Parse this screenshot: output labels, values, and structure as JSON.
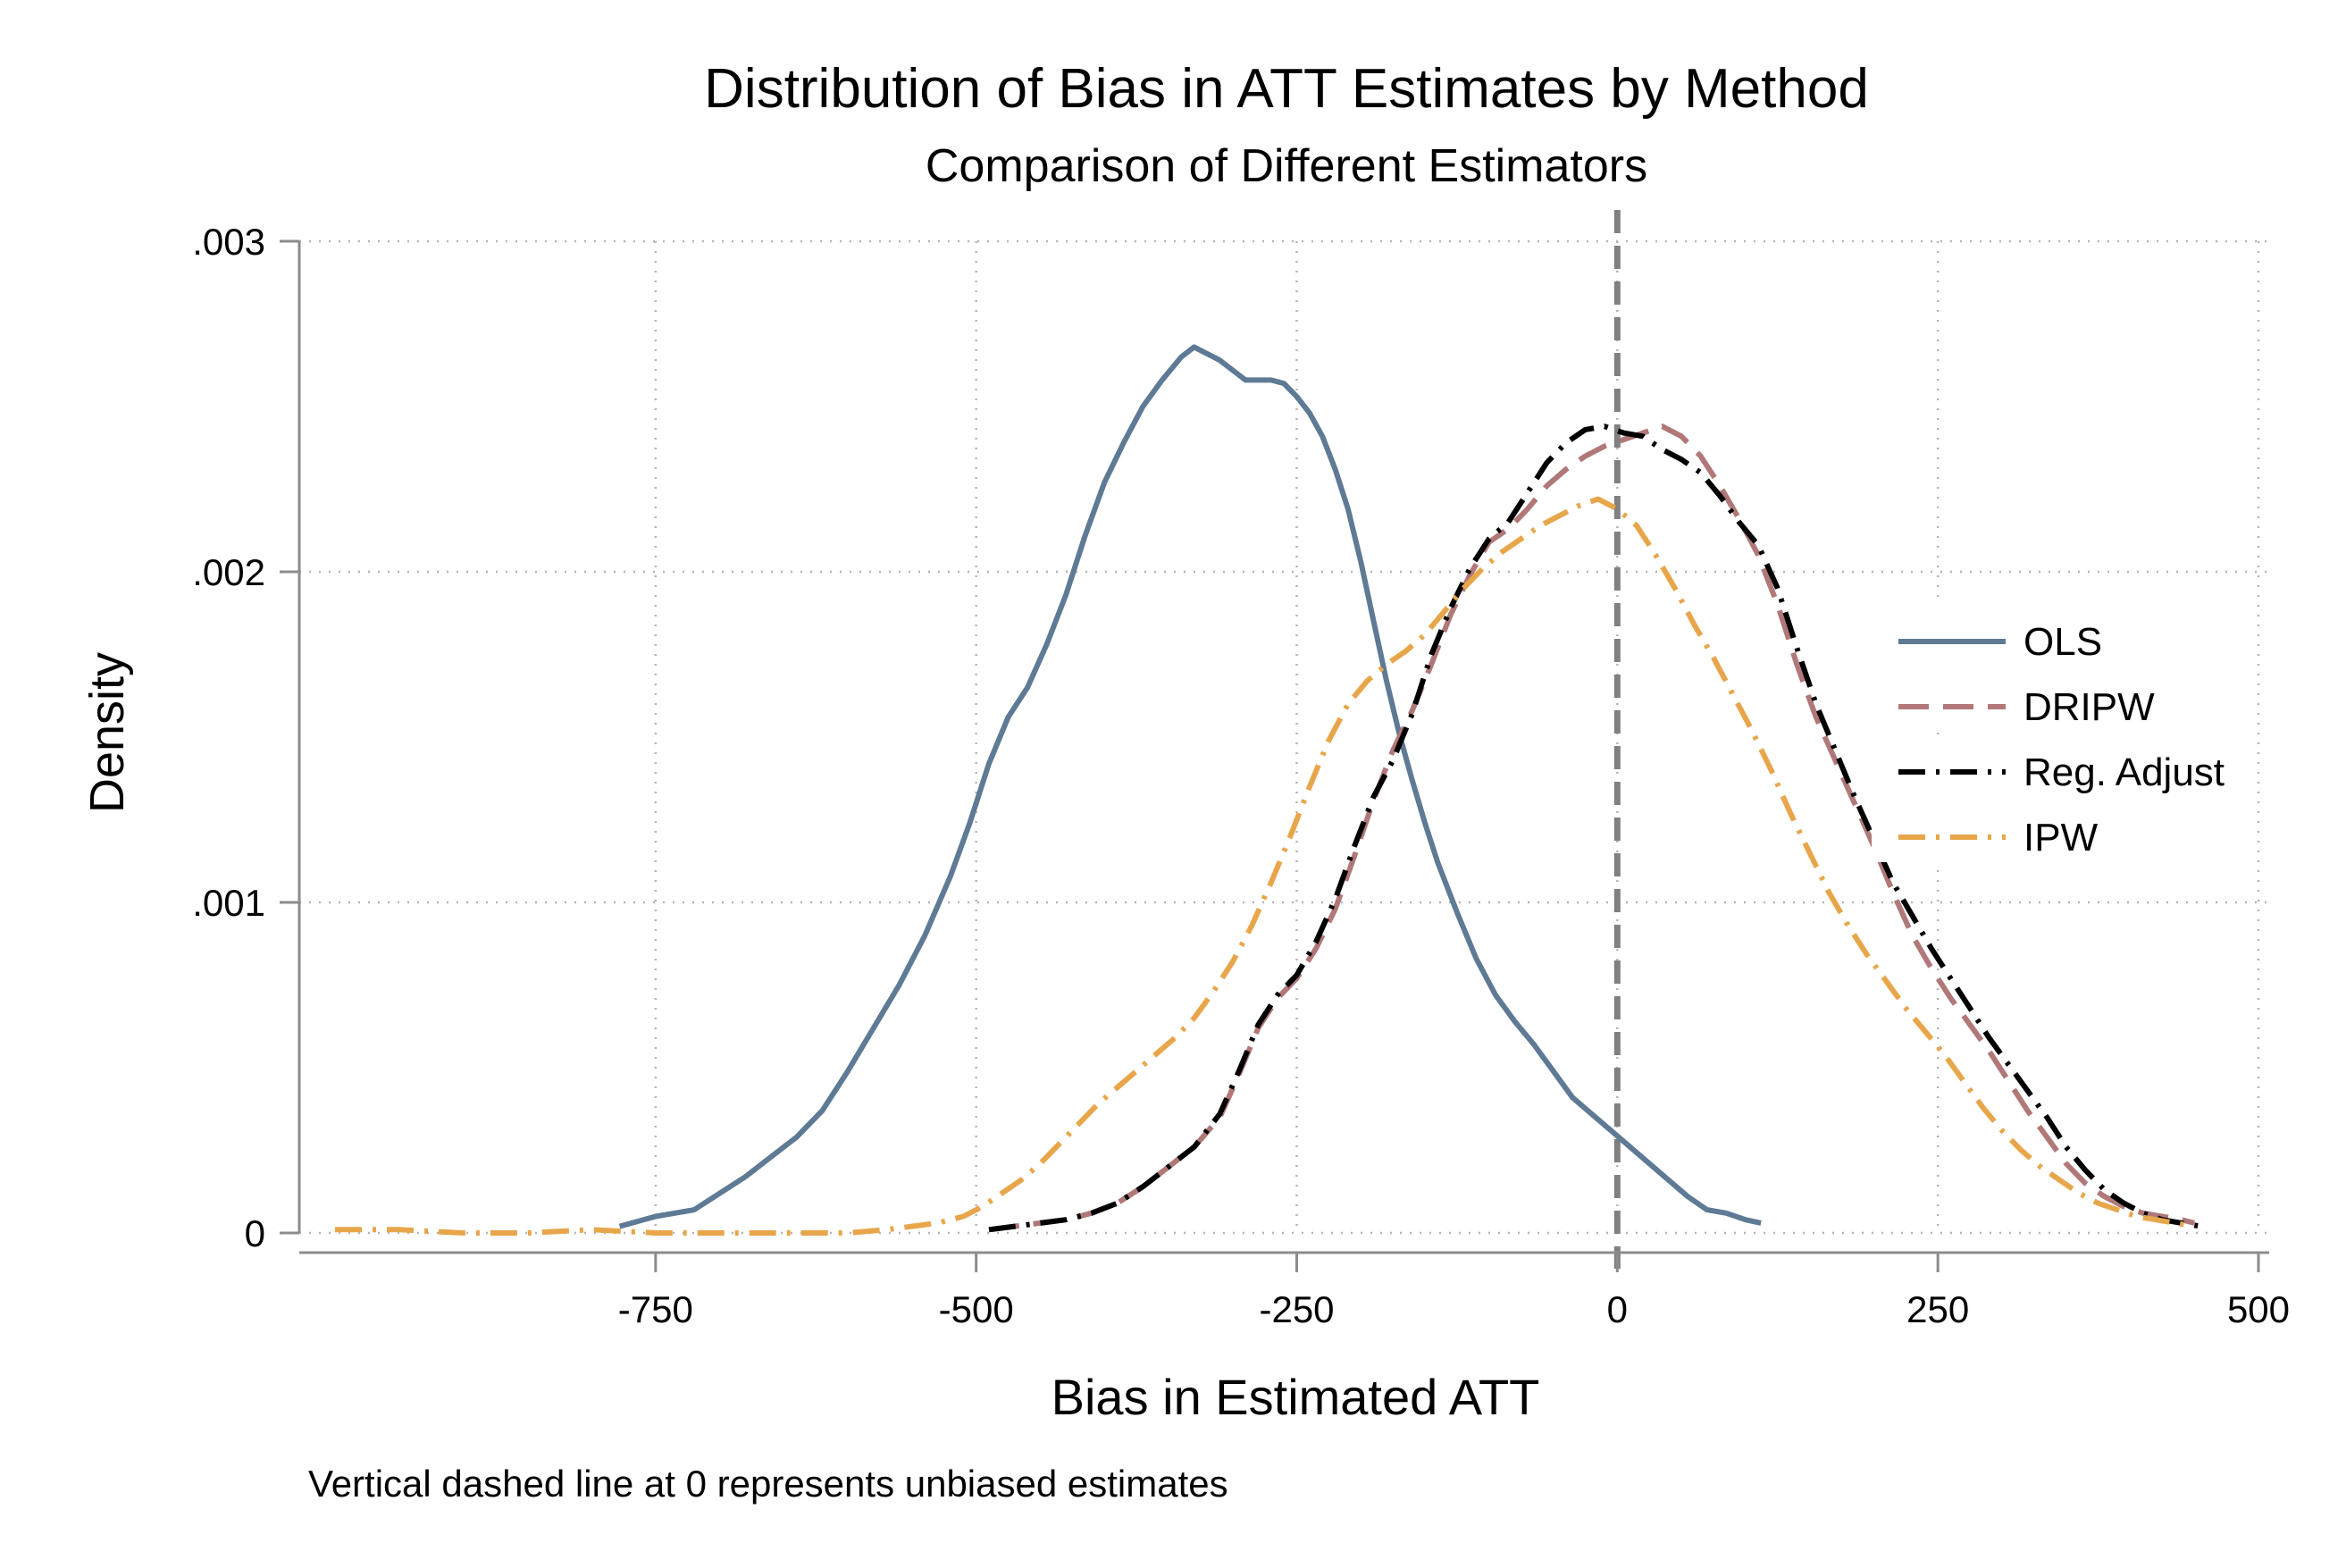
{
  "chart_data": {
    "type": "line",
    "title": "Distribution of Bias in ATT Estimates by Method",
    "subtitle": "Comparison of Different Estimators",
    "xlabel": "Bias in Estimated ATT",
    "ylabel": "Density",
    "note": "Vertical dashed line at 0 represents unbiased estimates",
    "xlim": [
      -1000,
      500
    ],
    "ylim": [
      0,
      0.003
    ],
    "xticks": [
      -750,
      -500,
      -250,
      0,
      250,
      500
    ],
    "xtick_labels": [
      "-750",
      "-500",
      "-250",
      "0",
      "250",
      "500"
    ],
    "yticks": [
      0,
      0.001,
      0.002,
      0.003
    ],
    "ytick_labels": [
      "0",
      ".001",
      ".002",
      ".003"
    ],
    "grid": true,
    "reference_line": {
      "x": 0,
      "color": "#808080",
      "style": "dashed"
    },
    "legend_position": "right",
    "series": [
      {
        "name": "OLS",
        "color": "#5e7a95",
        "dash": "solid",
        "points": [
          [
            -778,
            2e-05
          ],
          [
            -750,
            5e-05
          ],
          [
            -720,
            7e-05
          ],
          [
            -700,
            0.00012
          ],
          [
            -680,
            0.00017
          ],
          [
            -660,
            0.00023
          ],
          [
            -640,
            0.00029
          ],
          [
            -620,
            0.00037
          ],
          [
            -600,
            0.00049
          ],
          [
            -580,
            0.00062
          ],
          [
            -560,
            0.00075
          ],
          [
            -540,
            0.0009
          ],
          [
            -520,
            0.00108
          ],
          [
            -505,
            0.00124
          ],
          [
            -490,
            0.00142
          ],
          [
            -475,
            0.00156
          ],
          [
            -460,
            0.00165
          ],
          [
            -445,
            0.00178
          ],
          [
            -430,
            0.00193
          ],
          [
            -415,
            0.00211
          ],
          [
            -400,
            0.00227
          ],
          [
            -385,
            0.00239
          ],
          [
            -370,
            0.0025
          ],
          [
            -355,
            0.00258
          ],
          [
            -340,
            0.00265
          ],
          [
            -330,
            0.00268
          ],
          [
            -320,
            0.00266
          ],
          [
            -310,
            0.00264
          ],
          [
            -300,
            0.00261
          ],
          [
            -290,
            0.00258
          ],
          [
            -280,
            0.00258
          ],
          [
            -270,
            0.00258
          ],
          [
            -260,
            0.00257
          ],
          [
            -250,
            0.00253
          ],
          [
            -240,
            0.00248
          ],
          [
            -230,
            0.00241
          ],
          [
            -220,
            0.00231
          ],
          [
            -210,
            0.00219
          ],
          [
            -200,
            0.00203
          ],
          [
            -190,
            0.00185
          ],
          [
            -180,
            0.00167
          ],
          [
            -170,
            0.00151
          ],
          [
            -160,
            0.00137
          ],
          [
            -150,
            0.00124
          ],
          [
            -140,
            0.00112
          ],
          [
            -125,
            0.00097
          ],
          [
            -110,
            0.00083
          ],
          [
            -95,
            0.00072
          ],
          [
            -80,
            0.00064
          ],
          [
            -65,
            0.00057
          ],
          [
            -50,
            0.00049
          ],
          [
            -35,
            0.00041
          ],
          [
            -20,
            0.00036
          ],
          [
            -5,
            0.00031
          ],
          [
            10,
            0.00026
          ],
          [
            25,
            0.00021
          ],
          [
            40,
            0.00016
          ],
          [
            55,
            0.00011
          ],
          [
            70,
            7e-05
          ],
          [
            85,
            6e-05
          ],
          [
            100,
            4e-05
          ],
          [
            112,
            3e-05
          ]
        ]
      },
      {
        "name": "DRIPW",
        "color": "#b07878",
        "dash": "dashed",
        "points": [
          [
            -490,
            1e-05
          ],
          [
            -470,
            2e-05
          ],
          [
            -450,
            3e-05
          ],
          [
            -430,
            4e-05
          ],
          [
            -410,
            6e-05
          ],
          [
            -390,
            9e-05
          ],
          [
            -370,
            0.00014
          ],
          [
            -350,
            0.0002
          ],
          [
            -330,
            0.00026
          ],
          [
            -310,
            0.00035
          ],
          [
            -295,
            0.00048
          ],
          [
            -280,
            0.00062
          ],
          [
            -265,
            0.00071
          ],
          [
            -250,
            0.00077
          ],
          [
            -235,
            0.00086
          ],
          [
            -220,
            0.00098
          ],
          [
            -205,
            0.00114
          ],
          [
            -190,
            0.00131
          ],
          [
            -175,
            0.00146
          ],
          [
            -160,
            0.00158
          ],
          [
            -145,
            0.00172
          ],
          [
            -130,
            0.00187
          ],
          [
            -115,
            0.00199
          ],
          [
            -100,
            0.00209
          ],
          [
            -85,
            0.00213
          ],
          [
            -70,
            0.00219
          ],
          [
            -55,
            0.00226
          ],
          [
            -40,
            0.00231
          ],
          [
            -25,
            0.00235
          ],
          [
            -10,
            0.00238
          ],
          [
            5,
            0.0024
          ],
          [
            20,
            0.00242
          ],
          [
            35,
            0.00244
          ],
          [
            50,
            0.00241
          ],
          [
            65,
            0.00235
          ],
          [
            80,
            0.00226
          ],
          [
            95,
            0.00216
          ],
          [
            110,
            0.00205
          ],
          [
            125,
            0.0019
          ],
          [
            140,
            0.00172
          ],
          [
            155,
            0.00156
          ],
          [
            170,
            0.00143
          ],
          [
            185,
            0.0013
          ],
          [
            200,
            0.00117
          ],
          [
            215,
            0.00103
          ],
          [
            230,
            0.0009
          ],
          [
            245,
            0.0008
          ],
          [
            260,
            0.00071
          ],
          [
            275,
            0.00063
          ],
          [
            290,
            0.00055
          ],
          [
            305,
            0.00046
          ],
          [
            320,
            0.00037
          ],
          [
            335,
            0.00029
          ],
          [
            350,
            0.00021
          ],
          [
            365,
            0.00015
          ],
          [
            380,
            0.00011
          ],
          [
            395,
            8e-05
          ],
          [
            410,
            6e-05
          ],
          [
            425,
            5e-05
          ],
          [
            440,
            4e-05
          ],
          [
            450,
            3e-05
          ]
        ]
      },
      {
        "name": "Reg. Adjust",
        "color": "#000000",
        "dash": "dashdot",
        "points": [
          [
            -490,
            1e-05
          ],
          [
            -470,
            2e-05
          ],
          [
            -450,
            3e-05
          ],
          [
            -430,
            4e-05
          ],
          [
            -410,
            6e-05
          ],
          [
            -390,
            9e-05
          ],
          [
            -370,
            0.00014
          ],
          [
            -350,
            0.0002
          ],
          [
            -330,
            0.00026
          ],
          [
            -310,
            0.00036
          ],
          [
            -295,
            0.00049
          ],
          [
            -280,
            0.00063
          ],
          [
            -265,
            0.00072
          ],
          [
            -250,
            0.00078
          ],
          [
            -235,
            0.00088
          ],
          [
            -220,
            0.00101
          ],
          [
            -205,
            0.00117
          ],
          [
            -190,
            0.00132
          ],
          [
            -175,
            0.00143
          ],
          [
            -160,
            0.00157
          ],
          [
            -145,
            0.00175
          ],
          [
            -130,
            0.00189
          ],
          [
            -115,
            0.00201
          ],
          [
            -100,
            0.0021
          ],
          [
            -85,
            0.00215
          ],
          [
            -70,
            0.00224
          ],
          [
            -55,
            0.00233
          ],
          [
            -40,
            0.00239
          ],
          [
            -25,
            0.00243
          ],
          [
            -10,
            0.00244
          ],
          [
            5,
            0.00242
          ],
          [
            20,
            0.00241
          ],
          [
            35,
            0.00237
          ],
          [
            50,
            0.00234
          ],
          [
            65,
            0.0023
          ],
          [
            80,
            0.00223
          ],
          [
            95,
            0.00215
          ],
          [
            110,
            0.00208
          ],
          [
            125,
            0.00195
          ],
          [
            140,
            0.00177
          ],
          [
            155,
            0.0016
          ],
          [
            170,
            0.00146
          ],
          [
            185,
            0.00132
          ],
          [
            200,
            0.00119
          ],
          [
            215,
            0.00106
          ],
          [
            230,
            0.00096
          ],
          [
            245,
            0.00086
          ],
          [
            260,
            0.00077
          ],
          [
            275,
            0.00068
          ],
          [
            290,
            0.00059
          ],
          [
            305,
            0.00051
          ],
          [
            320,
            0.00043
          ],
          [
            335,
            0.00035
          ],
          [
            350,
            0.00026
          ],
          [
            365,
            0.00019
          ],
          [
            380,
            0.00013
          ],
          [
            395,
            9e-05
          ],
          [
            410,
            6e-05
          ],
          [
            425,
            4e-05
          ],
          [
            440,
            3e-05
          ],
          [
            455,
            2e-05
          ]
        ]
      },
      {
        "name": "IPW",
        "color": "#e8a64b",
        "dash": "dashdot",
        "points": [
          [
            -1000,
            1e-05
          ],
          [
            -950,
            1e-05
          ],
          [
            -900,
            0.0
          ],
          [
            -850,
            0.0
          ],
          [
            -800,
            1e-05
          ],
          [
            -750,
            0.0
          ],
          [
            -700,
            0.0
          ],
          [
            -650,
            0.0
          ],
          [
            -600,
            0.0
          ],
          [
            -570,
            1e-05
          ],
          [
            -550,
            2e-05
          ],
          [
            -530,
            3e-05
          ],
          [
            -510,
            5e-05
          ],
          [
            -495,
            8e-05
          ],
          [
            -480,
            0.00012
          ],
          [
            -465,
            0.00016
          ],
          [
            -450,
            0.00021
          ],
          [
            -435,
            0.00027
          ],
          [
            -420,
            0.00033
          ],
          [
            -405,
            0.00039
          ],
          [
            -390,
            0.00044
          ],
          [
            -375,
            0.00049
          ],
          [
            -360,
            0.00054
          ],
          [
            -345,
            0.00059
          ],
          [
            -330,
            0.00065
          ],
          [
            -315,
            0.00073
          ],
          [
            -300,
            0.00082
          ],
          [
            -285,
            0.00093
          ],
          [
            -270,
            0.00106
          ],
          [
            -255,
            0.0012
          ],
          [
            -240,
            0.00135
          ],
          [
            -225,
            0.00149
          ],
          [
            -210,
            0.0016
          ],
          [
            -195,
            0.00167
          ],
          [
            -180,
            0.00172
          ],
          [
            -165,
            0.00176
          ],
          [
            -150,
            0.00181
          ],
          [
            -135,
            0.00188
          ],
          [
            -120,
            0.00195
          ],
          [
            -105,
            0.00201
          ],
          [
            -90,
            0.00206
          ],
          [
            -75,
            0.0021
          ],
          [
            -60,
            0.00214
          ],
          [
            -45,
            0.00217
          ],
          [
            -30,
            0.0022
          ],
          [
            -15,
            0.00222
          ],
          [
            0,
            0.00219
          ],
          [
            15,
            0.00214
          ],
          [
            30,
            0.00205
          ],
          [
            45,
            0.00195
          ],
          [
            60,
            0.00184
          ],
          [
            75,
            0.00174
          ],
          [
            90,
            0.00163
          ],
          [
            105,
            0.00152
          ],
          [
            120,
            0.0014
          ],
          [
            135,
            0.00127
          ],
          [
            150,
            0.00115
          ],
          [
            165,
            0.00103
          ],
          [
            180,
            0.00093
          ],
          [
            195,
            0.00084
          ],
          [
            210,
            0.00076
          ],
          [
            225,
            0.00068
          ],
          [
            240,
            0.00061
          ],
          [
            255,
            0.00054
          ],
          [
            270,
            0.00046
          ],
          [
            285,
            0.00038
          ],
          [
            300,
            0.00031
          ],
          [
            315,
            0.00025
          ],
          [
            330,
            0.0002
          ],
          [
            345,
            0.00016
          ],
          [
            360,
            0.00012
          ],
          [
            375,
            9e-05
          ],
          [
            390,
            7e-05
          ],
          [
            405,
            5e-05
          ],
          [
            420,
            4e-05
          ],
          [
            435,
            3e-05
          ],
          [
            450,
            2e-05
          ]
        ]
      }
    ]
  }
}
